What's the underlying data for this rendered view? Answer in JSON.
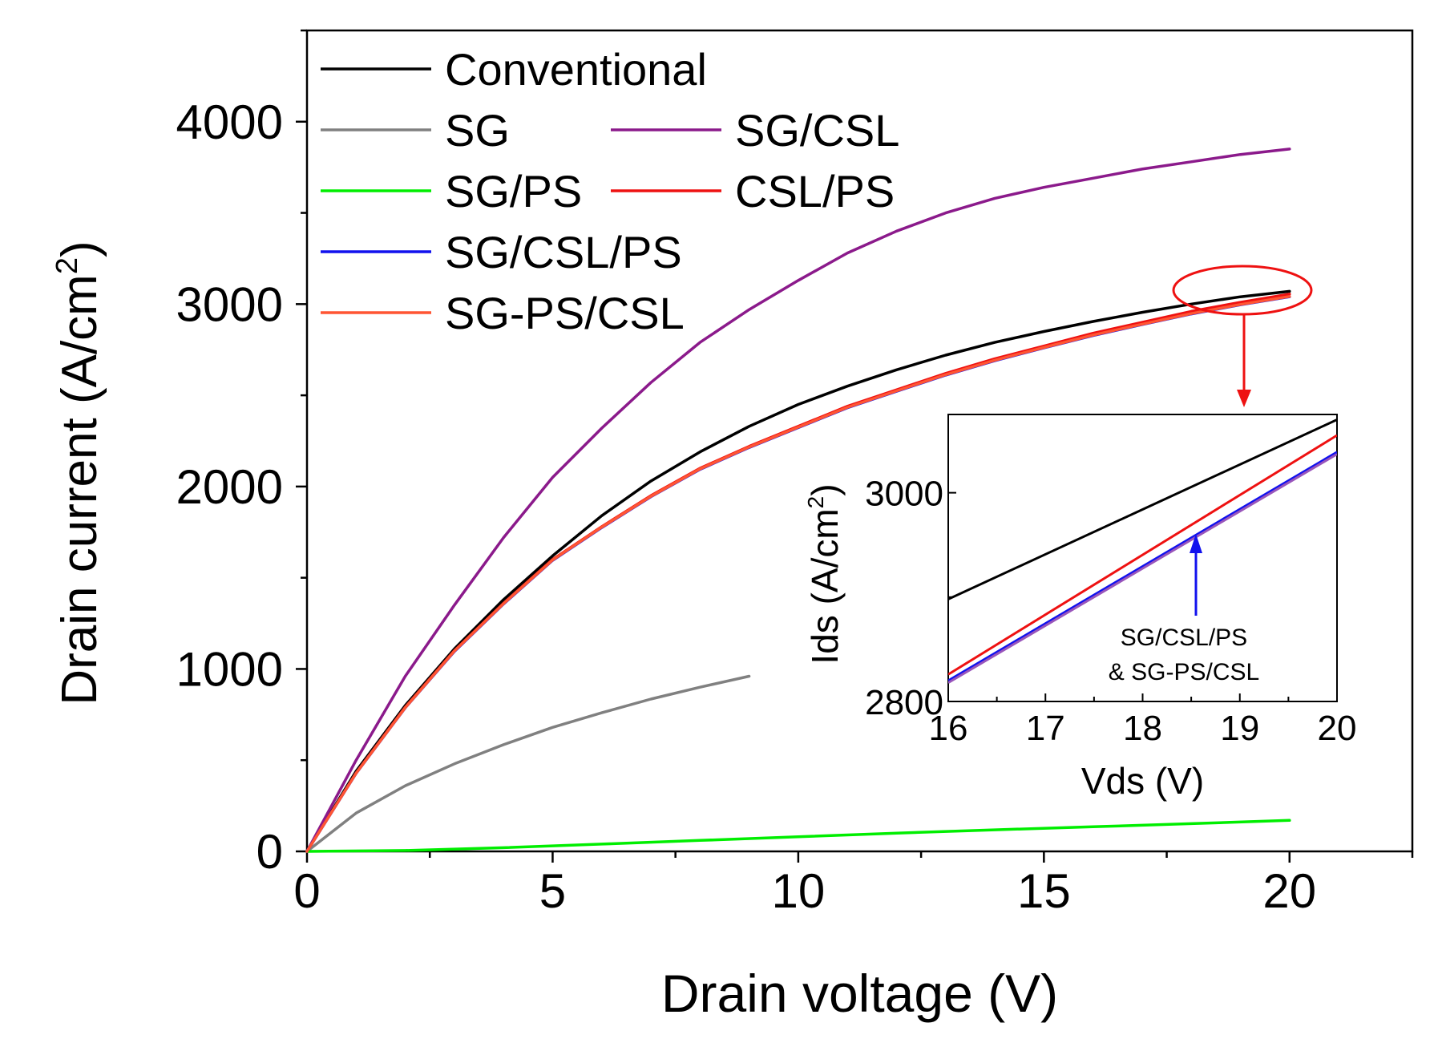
{
  "chart_data": [
    {
      "type": "line",
      "xlabel": "Drain voltage (V)",
      "ylabel_main": "Drain current (A/cm",
      "ylabel_sup": "2",
      "ylabel_close": ")",
      "xlim": [
        0,
        22.5
      ],
      "ylim": [
        0,
        4500
      ],
      "xticks": [
        0,
        5,
        10,
        15,
        20
      ],
      "yticks": [
        0,
        1000,
        2000,
        3000,
        4000
      ],
      "xminor_step": 2.5,
      "yminor_step": 500,
      "grid": false,
      "legend_position": "top-left",
      "series": [
        {
          "name": "Conventional",
          "color": "#000000",
          "x": [
            0,
            1,
            2,
            3,
            4,
            5,
            6,
            7,
            8,
            9,
            10,
            11,
            12,
            13,
            14,
            15,
            16,
            17,
            18,
            19,
            20
          ],
          "y": [
            0,
            440,
            800,
            1110,
            1380,
            1620,
            1840,
            2030,
            2190,
            2330,
            2450,
            2550,
            2640,
            2720,
            2790,
            2850,
            2905,
            2955,
            3000,
            3040,
            3070
          ]
        },
        {
          "name": "SG",
          "color": "#808080",
          "x": [
            0,
            1,
            2,
            3,
            4,
            5,
            6,
            7,
            8,
            9
          ],
          "y": [
            0,
            210,
            360,
            480,
            585,
            680,
            760,
            835,
            900,
            960
          ]
        },
        {
          "name": "SG/CSL",
          "color": "#8B1A8B",
          "x": [
            0,
            1,
            2,
            3,
            4,
            5,
            6,
            7,
            8,
            9,
            10,
            11,
            12,
            13,
            14,
            15,
            16,
            17,
            18,
            19,
            20
          ],
          "y": [
            0,
            500,
            960,
            1350,
            1720,
            2050,
            2320,
            2570,
            2790,
            2970,
            3130,
            3280,
            3400,
            3500,
            3580,
            3640,
            3690,
            3740,
            3780,
            3820,
            3850
          ]
        },
        {
          "name": "SG/PS",
          "color": "#00EE00",
          "x": [
            0,
            2,
            4,
            6,
            8,
            10,
            12,
            14,
            16,
            18,
            20
          ],
          "y": [
            0,
            5,
            20,
            40,
            60,
            80,
            100,
            118,
            135,
            152,
            170
          ]
        },
        {
          "name": "CSL/PS",
          "color": "#EE1111",
          "x": [
            0,
            1,
            2,
            3,
            4,
            5,
            6,
            7,
            8,
            9,
            10,
            11,
            12,
            13,
            14,
            15,
            16,
            17,
            18,
            19,
            20
          ],
          "y": [
            0,
            430,
            790,
            1100,
            1360,
            1600,
            1780,
            1950,
            2100,
            2220,
            2330,
            2440,
            2530,
            2620,
            2700,
            2770,
            2840,
            2900,
            2960,
            3010,
            3055
          ]
        },
        {
          "name": "SG/CSL/PS",
          "color": "#1111EE",
          "x": [
            0,
            1,
            2,
            3,
            4,
            5,
            6,
            7,
            8,
            9,
            10,
            11,
            12,
            13,
            14,
            15,
            16,
            17,
            18,
            19,
            20
          ],
          "y": [
            0,
            428,
            787,
            1096,
            1356,
            1595,
            1775,
            1944,
            2094,
            2214,
            2323,
            2432,
            2522,
            2611,
            2690,
            2760,
            2828,
            2888,
            2946,
            2996,
            3040
          ]
        },
        {
          "name": "SG-PS/CSL",
          "color": "#FF5533",
          "x": [
            0,
            1,
            2,
            3,
            4,
            5,
            6,
            7,
            8,
            9,
            10,
            11,
            12,
            13,
            14,
            15,
            16,
            17,
            18,
            19,
            20
          ],
          "y": [
            0,
            429,
            788,
            1098,
            1358,
            1597,
            1777,
            1946,
            2096,
            2216,
            2325,
            2434,
            2524,
            2613,
            2692,
            2762,
            2830,
            2890,
            2948,
            2998,
            3042
          ]
        }
      ]
    },
    {
      "type": "line",
      "xlabel": "Vds (V)",
      "ylabel_main": "Ids (A/cm",
      "ylabel_sup": "2",
      "ylabel_close": ")",
      "xlim": [
        16,
        20
      ],
      "ylim": [
        2800,
        3075
      ],
      "xticks": [
        16,
        17,
        18,
        19,
        20
      ],
      "yticks": [
        2800,
        3000
      ],
      "annotation": [
        "SG/CSL/PS",
        "& SG-PS/CSL"
      ],
      "series": [
        {
          "name": "Conventional",
          "color": "#000000",
          "x": [
            16,
            20
          ],
          "y": [
            2898,
            3070
          ]
        },
        {
          "name": "SG/CSL/PS",
          "color": "#1111EE",
          "x": [
            16,
            20
          ],
          "y": [
            2820,
            3039
          ]
        },
        {
          "name": "SG-PS/CSL",
          "color": "#9955BB",
          "x": [
            16,
            20
          ],
          "y": [
            2818,
            3037
          ]
        },
        {
          "name": "CSL/PS",
          "color": "#EE1111",
          "x": [
            16,
            20
          ],
          "y": [
            2826,
            3055
          ]
        }
      ]
    }
  ]
}
